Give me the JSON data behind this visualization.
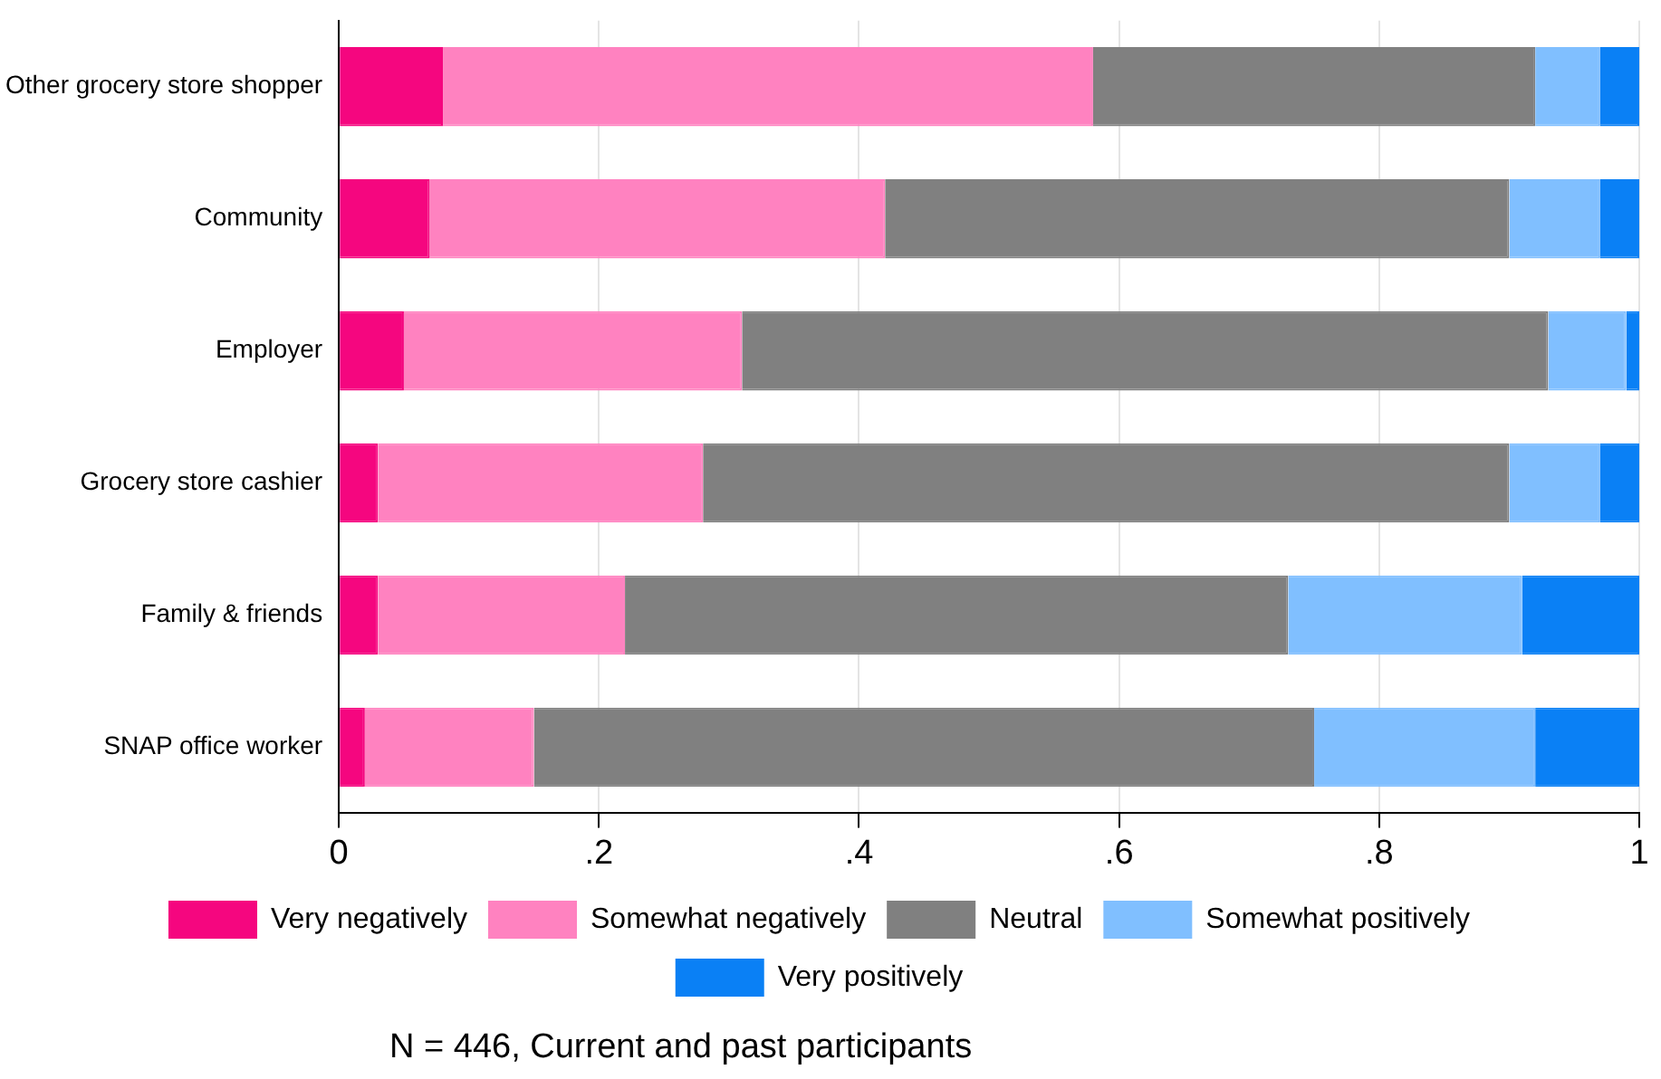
{
  "chart_data": {
    "type": "bar",
    "orientation": "horizontal",
    "stacked": true,
    "categories": [
      "Other grocery store shopper",
      "Community",
      "Employer",
      "Grocery store cashier",
      "Family & friends",
      "SNAP office worker"
    ],
    "series": [
      {
        "name": "Very negatively",
        "color": "#f5067f",
        "values": [
          0.08,
          0.07,
          0.05,
          0.03,
          0.03,
          0.02
        ]
      },
      {
        "name": "Somewhat negatively",
        "color": "#ff82c0",
        "values": [
          0.5,
          0.35,
          0.26,
          0.25,
          0.19,
          0.13
        ]
      },
      {
        "name": "Neutral",
        "color": "#808080",
        "values": [
          0.34,
          0.48,
          0.62,
          0.62,
          0.51,
          0.6
        ]
      },
      {
        "name": "Somewhat positively",
        "color": "#80bfff",
        "values": [
          0.05,
          0.07,
          0.06,
          0.07,
          0.18,
          0.17
        ]
      },
      {
        "name": "Very positively",
        "color": "#0a80f5",
        "values": [
          0.03,
          0.03,
          0.01,
          0.03,
          0.09,
          0.08
        ]
      }
    ],
    "xlim": [
      0,
      1
    ],
    "xticks": [
      0,
      {
        "value": 0.2,
        "label": ".2"
      },
      {
        "value": 0.4,
        "label": ".4"
      },
      {
        "value": 0.6,
        "label": ".6"
      },
      {
        "value": 0.8,
        "label": ".8"
      },
      1
    ],
    "grid": "x",
    "legend": "bottom",
    "annotations": [
      "N = 446, Current and past participants"
    ]
  }
}
